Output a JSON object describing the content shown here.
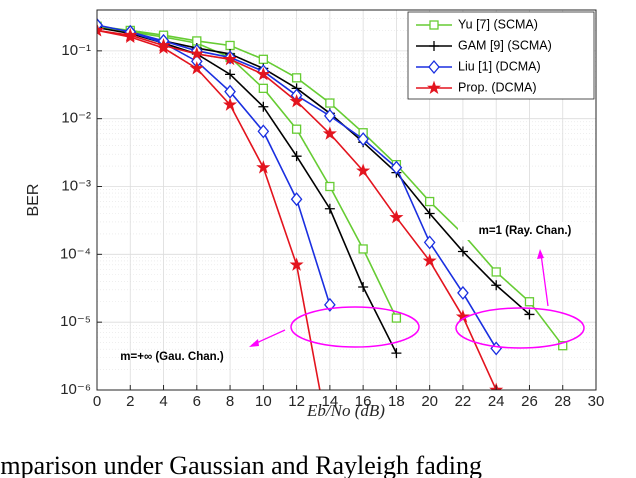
{
  "chart_data": {
    "type": "line",
    "log_y": true,
    "grid": true,
    "minor_grid": true,
    "x_label": "Eb/No (dB)",
    "y_label": "BER",
    "xlim": [
      0,
      30
    ],
    "xticks": [
      0,
      2,
      4,
      6,
      8,
      10,
      12,
      14,
      16,
      18,
      20,
      22,
      24,
      26,
      28,
      30
    ],
    "ylim": [
      1e-06,
      0.4
    ],
    "yticks": [
      {
        "value": 1e-06,
        "label": "10⁻⁶"
      },
      {
        "value": 1e-05,
        "label": "10⁻⁵"
      },
      {
        "value": 0.0001,
        "label": "10⁻⁴"
      },
      {
        "value": 0.001,
        "label": "10⁻³"
      },
      {
        "value": 0.01,
        "label": "10⁻²"
      },
      {
        "value": 0.1,
        "label": "10⁻¹"
      }
    ],
    "legend": "upper right",
    "series": [
      {
        "name": "Yu [7] (SCMA)",
        "color": "#66cc33",
        "marker": "square",
        "x": [
          0,
          2,
          4,
          6,
          8,
          10,
          12,
          14,
          16,
          18,
          null,
          0,
          2,
          4,
          6,
          8,
          10,
          12,
          14,
          16,
          18,
          20,
          22,
          24,
          26,
          28
        ],
        "values": [
          0.23,
          0.19,
          0.16,
          0.13,
          0.08,
          0.028,
          0.007,
          0.001,
          0.00012,
          1.15e-05,
          null,
          0.23,
          0.2,
          0.17,
          0.14,
          0.12,
          0.075,
          0.04,
          0.017,
          0.0062,
          0.0021,
          0.0006,
          0.0002,
          5.5e-05,
          2e-05,
          4.5e-06
        ]
      },
      {
        "name": "GAM [9] (SCMA)",
        "color": "#000000",
        "marker": "plus",
        "x": [
          0,
          2,
          4,
          6,
          8,
          10,
          12,
          14,
          16,
          18,
          null,
          0,
          2,
          4,
          6,
          8,
          10,
          12,
          14,
          16,
          18,
          20,
          22,
          24,
          26
        ],
        "values": [
          0.22,
          0.18,
          0.13,
          0.09,
          0.045,
          0.015,
          0.0028,
          0.00047,
          3.3e-05,
          3.5e-06,
          null,
          0.22,
          0.18,
          0.14,
          0.11,
          0.09,
          0.055,
          0.028,
          0.012,
          0.0045,
          0.0016,
          0.0004,
          0.00011,
          3.5e-05,
          1.3e-05
        ]
      },
      {
        "name": "Liu [1] (DCMA)",
        "color": "#1a2fe0",
        "marker": "diamond",
        "x": [
          0,
          2,
          4,
          6,
          8,
          10,
          12,
          14,
          null,
          0,
          2,
          4,
          6,
          8,
          10,
          12,
          14,
          16,
          18,
          20,
          22,
          24
        ],
        "values": [
          0.24,
          0.19,
          0.13,
          0.07,
          0.025,
          0.0065,
          0.00065,
          1.8e-05,
          null,
          0.24,
          0.19,
          0.14,
          0.1,
          0.08,
          0.05,
          0.022,
          0.011,
          0.005,
          0.0019,
          0.00015,
          2.7e-05,
          4.1e-06
        ]
      },
      {
        "name": "Prop. (DCMA)",
        "color": "#e3141e",
        "marker": "star",
        "x": [
          0,
          2,
          4,
          6,
          8,
          10,
          12,
          14,
          null,
          0,
          2,
          4,
          6,
          8,
          10,
          12,
          14,
          16,
          18,
          20,
          22,
          24
        ],
        "values": [
          0.2,
          0.16,
          0.11,
          0.055,
          0.016,
          0.0019,
          7e-05,
          1.6e-07,
          null,
          0.2,
          0.17,
          0.12,
          0.09,
          0.075,
          0.045,
          0.018,
          0.006,
          0.0017,
          0.00035,
          8e-05,
          1.2e-05,
          1e-06
        ]
      }
    ],
    "annotations": [
      "m=1 (Ray. Chan.)",
      "m=+∞ (Gau. Chan.)"
    ],
    "caption": "Comparison under Gaussian and Rayleigh fading"
  }
}
